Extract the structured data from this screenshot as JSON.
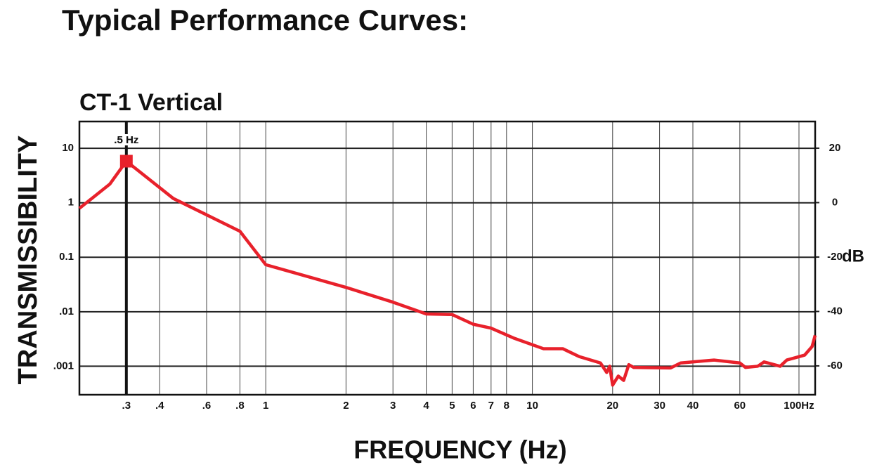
{
  "heading": "Typical Performance Curves:",
  "chart_data": {
    "type": "line",
    "title": "CT-1 Vertical",
    "xlabel": "FREQUENCY (Hz)",
    "ylabel": "TRANSMISSIBILITY",
    "y2label": "dB",
    "xscale": "log",
    "yscale": "log",
    "grid": true,
    "xlim": [
      0.2,
      115
    ],
    "ylim": [
      0.0003,
      31
    ],
    "y2lim": [
      -70.6,
      29.8
    ],
    "xticks": [
      {
        "value": 0.3,
        "label": ".3"
      },
      {
        "value": 0.4,
        "label": ".4"
      },
      {
        "value": 0.6,
        "label": ".6"
      },
      {
        "value": 0.8,
        "label": ".8"
      },
      1,
      2,
      3,
      4,
      5,
      6,
      7,
      8,
      10,
      20,
      30,
      40,
      60,
      {
        "value": 100,
        "label": "100Hz"
      }
    ],
    "yticks": [
      10,
      1,
      0.1,
      {
        "value": 0.01,
        "label": ".01"
      },
      {
        "value": 0.001,
        "label": ".001"
      }
    ],
    "y2ticks": [
      20,
      0,
      -20,
      -40,
      -60
    ],
    "annotations": [
      {
        "text": ".5 Hz",
        "x": 0.3
      }
    ],
    "x": [
      0.2,
      0.26,
      0.3,
      0.45,
      0.8,
      1,
      2,
      3,
      4,
      5,
      6,
      7,
      8.5,
      11,
      13,
      15,
      18,
      19,
      19.5,
      20,
      21,
      22,
      23,
      24,
      33,
      36,
      48,
      60,
      63,
      70,
      74,
      85,
      90,
      105,
      112,
      115
    ],
    "series": [
      {
        "name": "CT-1 Vertical",
        "color": "#e8212b",
        "values": [
          0.79,
          2.2,
          5.8,
          1.2,
          0.3,
          0.073,
          0.028,
          0.015,
          0.0091,
          0.0089,
          0.0059,
          0.005,
          0.0033,
          0.0021,
          0.0021,
          0.0015,
          0.00115,
          0.00077,
          0.001,
          0.00045,
          0.00066,
          0.00055,
          0.00107,
          0.00095,
          0.00093,
          0.00115,
          0.0013,
          0.00115,
          0.00095,
          0.001,
          0.0012,
          0.001,
          0.0013,
          0.0016,
          0.0023,
          0.0037
        ]
      }
    ]
  }
}
